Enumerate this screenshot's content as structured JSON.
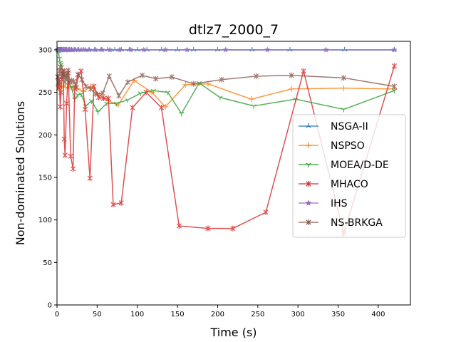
{
  "chart_data": {
    "type": "line",
    "title": "dtlz7_2000_7",
    "xlabel": "Time (s)",
    "ylabel": "Non-dominated Solutions",
    "xlim": [
      0,
      440
    ],
    "ylim": [
      0,
      310
    ],
    "xticks": [
      0,
      50,
      100,
      150,
      200,
      250,
      300,
      350,
      400
    ],
    "yticks": [
      0,
      50,
      100,
      150,
      200,
      250,
      300
    ],
    "legend_position": "center-right",
    "grid": false,
    "series": [
      {
        "name": "NSGA-II",
        "color": "#1f77b4",
        "marker": "tri-up",
        "x": [
          1,
          2,
          3,
          4,
          5,
          6,
          8,
          10,
          12,
          15,
          18,
          22,
          27,
          33,
          40,
          47,
          55,
          63,
          72,
          80,
          90,
          100,
          112,
          130,
          150,
          170,
          200,
          243,
          290,
          358,
          420
        ],
        "y": [
          300,
          300,
          300,
          300,
          300,
          300,
          300,
          300,
          300,
          300,
          300,
          300,
          300,
          300,
          300,
          300,
          300,
          300,
          300,
          300,
          300,
          300,
          300,
          300,
          300,
          300,
          300,
          300,
          300,
          300,
          300
        ]
      },
      {
        "name": "NSPSO",
        "color": "#ff7f0e",
        "marker": "plus",
        "x": [
          1,
          3,
          5,
          8,
          11,
          15,
          20,
          26,
          33,
          42,
          53,
          64,
          76,
          96,
          118,
          135,
          160,
          188,
          242,
          292,
          357,
          420
        ],
        "y": [
          258,
          262,
          255,
          258,
          256,
          255,
          257,
          254,
          251,
          257,
          247,
          240,
          235,
          264,
          250,
          233,
          259,
          260,
          242,
          254,
          255,
          254
        ]
      },
      {
        "name": "MOEA/D-DE",
        "color": "#2ca02c",
        "marker": "tri-down",
        "x": [
          1,
          2,
          3,
          4,
          5,
          6,
          8,
          10,
          12,
          15,
          18,
          22,
          26,
          30,
          36,
          43,
          51,
          62,
          74,
          88,
          104,
          120,
          138,
          155,
          177,
          203,
          245,
          297,
          357,
          420
        ],
        "y": [
          300,
          296,
          290,
          285,
          283,
          280,
          272,
          270,
          268,
          262,
          256,
          242,
          247,
          248,
          234,
          240,
          227,
          237,
          237,
          241,
          249,
          252,
          250,
          225,
          261,
          244,
          234,
          242,
          230,
          252
        ]
      },
      {
        "name": "MHACO",
        "color": "#d62728",
        "marker": "x-star",
        "x": [
          1,
          2,
          3,
          4,
          5,
          6,
          7,
          8,
          9,
          10,
          12,
          14,
          17,
          20,
          22,
          26,
          30,
          35,
          41,
          46,
          52,
          58,
          64,
          70,
          80,
          94,
          111,
          130,
          152,
          188,
          219,
          260,
          307,
          357,
          420
        ],
        "y": [
          268,
          255,
          262,
          233,
          250,
          265,
          275,
          271,
          195,
          176,
          237,
          273,
          175,
          160,
          254,
          271,
          275,
          230,
          149,
          257,
          244,
          243,
          243,
          118,
          120,
          232,
          250,
          232,
          93,
          90,
          90,
          109,
          275,
          84,
          281
        ]
      },
      {
        "name": "IHS",
        "color": "#9467bd",
        "marker": "star",
        "x": [
          1,
          2,
          3,
          4,
          5,
          6,
          7,
          8,
          9,
          10,
          11,
          12,
          14,
          16,
          18,
          20,
          23,
          26,
          30,
          35,
          40,
          48,
          56,
          66,
          78,
          92,
          108,
          135,
          162,
          210,
          262,
          335,
          420
        ],
        "y": [
          300,
          300,
          300,
          300,
          300,
          300,
          300,
          300,
          300,
          300,
          300,
          300,
          300,
          300,
          300,
          300,
          300,
          300,
          300,
          300,
          300,
          300,
          300,
          300,
          300,
          300,
          300,
          300,
          300,
          300,
          300,
          300,
          300
        ]
      },
      {
        "name": "NS-BRKGA",
        "color": "#8c564b",
        "marker": "x-star",
        "x": [
          1,
          2,
          3,
          4,
          5,
          6,
          7,
          8,
          9,
          10,
          11,
          12,
          14,
          16,
          18,
          21,
          24,
          27,
          31,
          36,
          42,
          48,
          57,
          65,
          77,
          88,
          106,
          123,
          143,
          170,
          205,
          248,
          292,
          357,
          420
        ],
        "y": [
          268,
          262,
          275,
          280,
          272,
          268,
          270,
          272,
          275,
          262,
          268,
          270,
          276,
          262,
          264,
          263,
          256,
          270,
          265,
          257,
          254,
          248,
          249,
          269,
          246,
          262,
          270,
          266,
          268,
          260,
          265,
          269,
          270,
          267,
          257
        ]
      }
    ]
  }
}
